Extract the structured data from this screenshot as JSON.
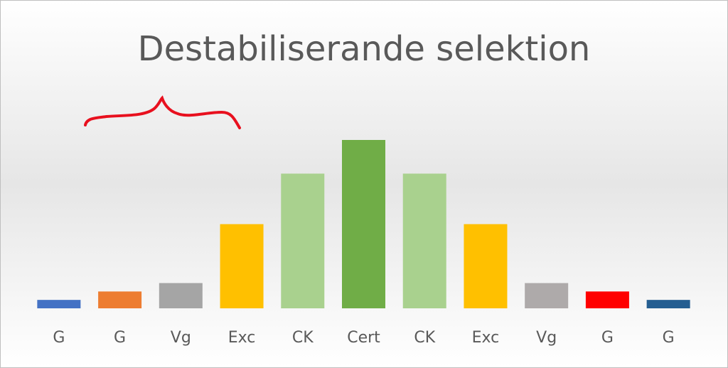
{
  "chart_data": {
    "type": "bar",
    "title": "Destabiliserande selektion",
    "categories": [
      "G",
      "G",
      "Vg",
      "Exc",
      "CK",
      "Cert",
      "CK",
      "Exc",
      "Vg",
      "G",
      "G"
    ],
    "values": [
      1,
      2,
      3,
      10,
      16,
      20,
      16,
      10,
      3,
      2,
      1
    ],
    "colors": [
      "#4472c4",
      "#ed7d31",
      "#a5a5a5",
      "#ffc000",
      "#a9d18e",
      "#70ad47",
      "#a9d18e",
      "#ffc000",
      "#aeaaaa",
      "#ff0000",
      "#255e91"
    ]
  }
}
